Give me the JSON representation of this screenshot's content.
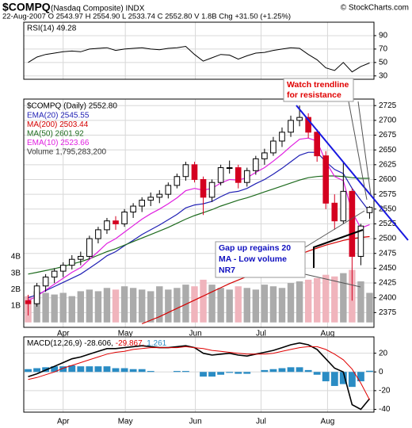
{
  "chart_data": {
    "type": "candlestick",
    "title": "$COMPQ",
    "subtitle": "(Nasdaq Composite) INDX",
    "source": "© StockCharts.com",
    "info": "22-Aug-2007  O 2543.97  H 2554.90  L 2533.74  C 2552.80  V 1.8B  Chg +31.50 (+1.25%)",
    "price_label": "$COMPQ (Daily) 2552.80",
    "xlim": [
      -0.5,
      39.5
    ],
    "xticks": [
      {
        "value": 4,
        "label": "Apr"
      },
      {
        "value": 11.1,
        "label": "May"
      },
      {
        "value": 19.1,
        "label": "Jun"
      },
      {
        "value": 26.6,
        "label": "Jul"
      },
      {
        "value": 34.2,
        "label": "Aug"
      }
    ],
    "ylim": [
      2350,
      2736
    ],
    "yticks": [
      2375,
      2400,
      2425,
      2450,
      2475,
      2500,
      2525,
      2550,
      2575,
      2600,
      2625,
      2650,
      2675,
      2700,
      2725
    ],
    "grid": true,
    "colors": {
      "up": "#000000",
      "down": "#d40020",
      "volume_up": "#ababab",
      "volume_down": "#f0b4bc"
    },
    "candles": [
      [
        2395,
        2405,
        2370,
        2390
      ],
      [
        2390,
        2425,
        2385,
        2420
      ],
      [
        2420,
        2440,
        2410,
        2435
      ],
      [
        2435,
        2450,
        2425,
        2445
      ],
      [
        2445,
        2460,
        2435,
        2455
      ],
      [
        2455,
        2472,
        2448,
        2465
      ],
      [
        2465,
        2478,
        2455,
        2470
      ],
      [
        2470,
        2505,
        2465,
        2500
      ],
      [
        2500,
        2520,
        2492,
        2515
      ],
      [
        2515,
        2535,
        2508,
        2530
      ],
      [
        2530,
        2538,
        2515,
        2525
      ],
      [
        2525,
        2550,
        2520,
        2545
      ],
      [
        2545,
        2560,
        2535,
        2555
      ],
      [
        2555,
        2570,
        2545,
        2565
      ],
      [
        2565,
        2578,
        2555,
        2570
      ],
      [
        2570,
        2582,
        2560,
        2575
      ],
      [
        2575,
        2595,
        2568,
        2590
      ],
      [
        2590,
        2610,
        2585,
        2605
      ],
      [
        2605,
        2630,
        2598,
        2625
      ],
      [
        2625,
        2630,
        2595,
        2600
      ],
      [
        2600,
        2605,
        2540,
        2570
      ],
      [
        2570,
        2600,
        2562,
        2595
      ],
      [
        2595,
        2625,
        2590,
        2620
      ],
      [
        2620,
        2632,
        2610,
        2620
      ],
      [
        2620,
        2625,
        2585,
        2595
      ],
      [
        2595,
        2620,
        2588,
        2615
      ],
      [
        2615,
        2640,
        2608,
        2635
      ],
      [
        2635,
        2652,
        2625,
        2645
      ],
      [
        2645,
        2672,
        2640,
        2665
      ],
      [
        2665,
        2688,
        2655,
        2680
      ],
      [
        2680,
        2708,
        2672,
        2700
      ],
      [
        2700,
        2725,
        2690,
        2705
      ],
      [
        2705,
        2712,
        2670,
        2680
      ],
      [
        2680,
        2685,
        2630,
        2640
      ],
      [
        2640,
        2648,
        2550,
        2560
      ],
      [
        2560,
        2575,
        2515,
        2530
      ],
      [
        2530,
        2630,
        2525,
        2580
      ],
      [
        2580,
        2585,
        2395,
        2470
      ],
      [
        2470,
        2525,
        2455,
        2521.3
      ],
      [
        2543.97,
        2554.9,
        2533.74,
        2552.8
      ]
    ],
    "volume": {
      "name": "Volume 1,795,283,200",
      "color": "#888888",
      "values": [
        1.6,
        1.9,
        1.8,
        1.7,
        1.8,
        1.6,
        1.9,
        2.0,
        1.9,
        2.1,
        2.0,
        2.2,
        2.1,
        2.0,
        1.9,
        2.2,
        2.0,
        2.1,
        2.3,
        2.2,
        2.6,
        2.3,
        2.1,
        2.0,
        2.2,
        2.1,
        2.0,
        2.3,
        2.2,
        2.1,
        2.4,
        2.5,
        2.6,
        2.7,
        2.9,
        2.8,
        3.0,
        3.2,
        2.5,
        1.8
      ],
      "y2lim": [
        -0.3,
        13.6
      ],
      "y2ticks": [
        {
          "value": 1,
          "label": "1B"
        },
        {
          "value": 2,
          "label": "2B"
        },
        {
          "value": 3,
          "label": "3B"
        },
        {
          "value": 4,
          "label": "4B"
        }
      ]
    },
    "series": [
      {
        "name": "EMA(20) 2545.55",
        "color": "#1f1fb4",
        "values": [
          2400,
          2405,
          2412,
          2419,
          2426,
          2433,
          2440,
          2450,
          2460,
          2471,
          2478,
          2488,
          2497,
          2507,
          2515,
          2523,
          2532,
          2541,
          2552,
          2557,
          2559,
          2563,
          2571,
          2578,
          2580,
          2585,
          2593,
          2600,
          2609,
          2619,
          2630,
          2641,
          2646,
          2646,
          2630,
          2617,
          2610,
          2585,
          2565,
          2545.55
        ]
      },
      {
        "name": "MA(200) 2503.44",
        "color": "#d40000",
        "values": [
          null,
          null,
          null,
          null,
          null,
          null,
          null,
          null,
          null,
          null,
          null,
          null,
          null,
          2356,
          2362,
          2368,
          2375,
          2382,
          2389,
          2396,
          2403,
          2410,
          2417,
          2424,
          2430,
          2436,
          2443,
          2449,
          2455,
          2461,
          2467,
          2473,
          2479,
          2484,
          2489,
          2493,
          2497,
          2500,
          2502,
          2503.44
        ]
      },
      {
        "name": "MA(50) 2601.92",
        "color": "#1e6b1e",
        "values": [
          2440,
          2443,
          2446,
          2449,
          2453,
          2457,
          2461,
          2466,
          2472,
          2478,
          2483,
          2489,
          2495,
          2501,
          2507,
          2513,
          2519,
          2526,
          2533,
          2539,
          2544,
          2549,
          2555,
          2560,
          2565,
          2569,
          2574,
          2579,
          2584,
          2589,
          2594,
          2599,
          2603,
          2605,
          2606,
          2606,
          2605,
          2603,
          2602,
          2601.92
        ]
      },
      {
        "name": "EMA(10) 2523.66",
        "color": "#e020e0",
        "values": [
          2395,
          2403,
          2413,
          2423,
          2433,
          2443,
          2451,
          2465,
          2478,
          2492,
          2500,
          2511,
          2522,
          2533,
          2542,
          2550,
          2559,
          2569,
          2581,
          2585,
          2582,
          2585,
          2594,
          2600,
          2599,
          2603,
          2612,
          2620,
          2631,
          2643,
          2656,
          2668,
          2670,
          2665,
          2630,
          2605,
          2598,
          2545,
          2518,
          2523.66
        ]
      }
    ],
    "rsi": {
      "label": "RSI(14) 49.28",
      "color": "#000000",
      "ylim": [
        25,
        110
      ],
      "yticks": [
        30,
        50,
        70,
        90
      ],
      "values": [
        50,
        58,
        62,
        64,
        66,
        67,
        66,
        70,
        71,
        72,
        68,
        70,
        71,
        72,
        70,
        69,
        71,
        72,
        74,
        62,
        52,
        57,
        62,
        61,
        55,
        60,
        64,
        65,
        68,
        70,
        72,
        71,
        62,
        54,
        42,
        38,
        50,
        36,
        44,
        49.28
      ]
    },
    "macd": {
      "label": "MACD(12,26,9)",
      "ylim": [
        -43,
        37.5
      ],
      "yticks": [
        -40,
        -20,
        0,
        20
      ],
      "lines": [
        {
          "name": "-28.606,",
          "color": "#000000",
          "values": [
            -5,
            -2,
            2,
            6,
            10,
            14,
            16,
            19,
            22,
            25,
            25,
            26,
            27,
            28,
            27,
            26,
            26,
            27,
            28,
            26,
            20,
            18,
            19,
            20,
            18,
            17,
            19,
            21,
            23,
            26,
            29,
            31,
            29,
            24,
            14,
            4,
            0,
            -35,
            -40,
            -28.606
          ]
        },
        {
          "name": "-29.867,",
          "color": "#e00000",
          "values": [
            -8,
            -6,
            -3,
            0,
            4,
            7,
            10,
            13,
            16,
            19,
            21,
            22,
            24,
            25,
            26,
            26,
            26,
            26,
            27,
            26,
            25,
            23,
            22,
            21,
            20,
            19,
            19,
            19,
            20,
            22,
            24,
            26,
            27,
            27,
            24,
            19,
            13,
            3,
            -12,
            -29.867
          ]
        }
      ],
      "histogram": {
        "name": "1.261",
        "color": "#2a8cc4",
        "values": [
          3,
          4,
          5,
          6,
          6,
          7,
          6,
          6,
          6,
          6,
          4,
          4,
          3,
          3,
          1,
          0,
          0,
          1,
          1,
          0,
          -5,
          -5,
          -3,
          -1,
          -2,
          -2,
          0,
          2,
          3,
          4,
          5,
          5,
          2,
          -3,
          -10,
          -15,
          -13,
          -16,
          -10,
          1.261
        ]
      }
    },
    "annotations": [
      {
        "lines": [
          "Watch trendline",
          "for resistance"
        ],
        "color": "#e00000"
      },
      {
        "lines": [
          "Gap up regains 20",
          "MA - Low volume",
          "NR7"
        ],
        "color": "#1010c0"
      }
    ]
  }
}
